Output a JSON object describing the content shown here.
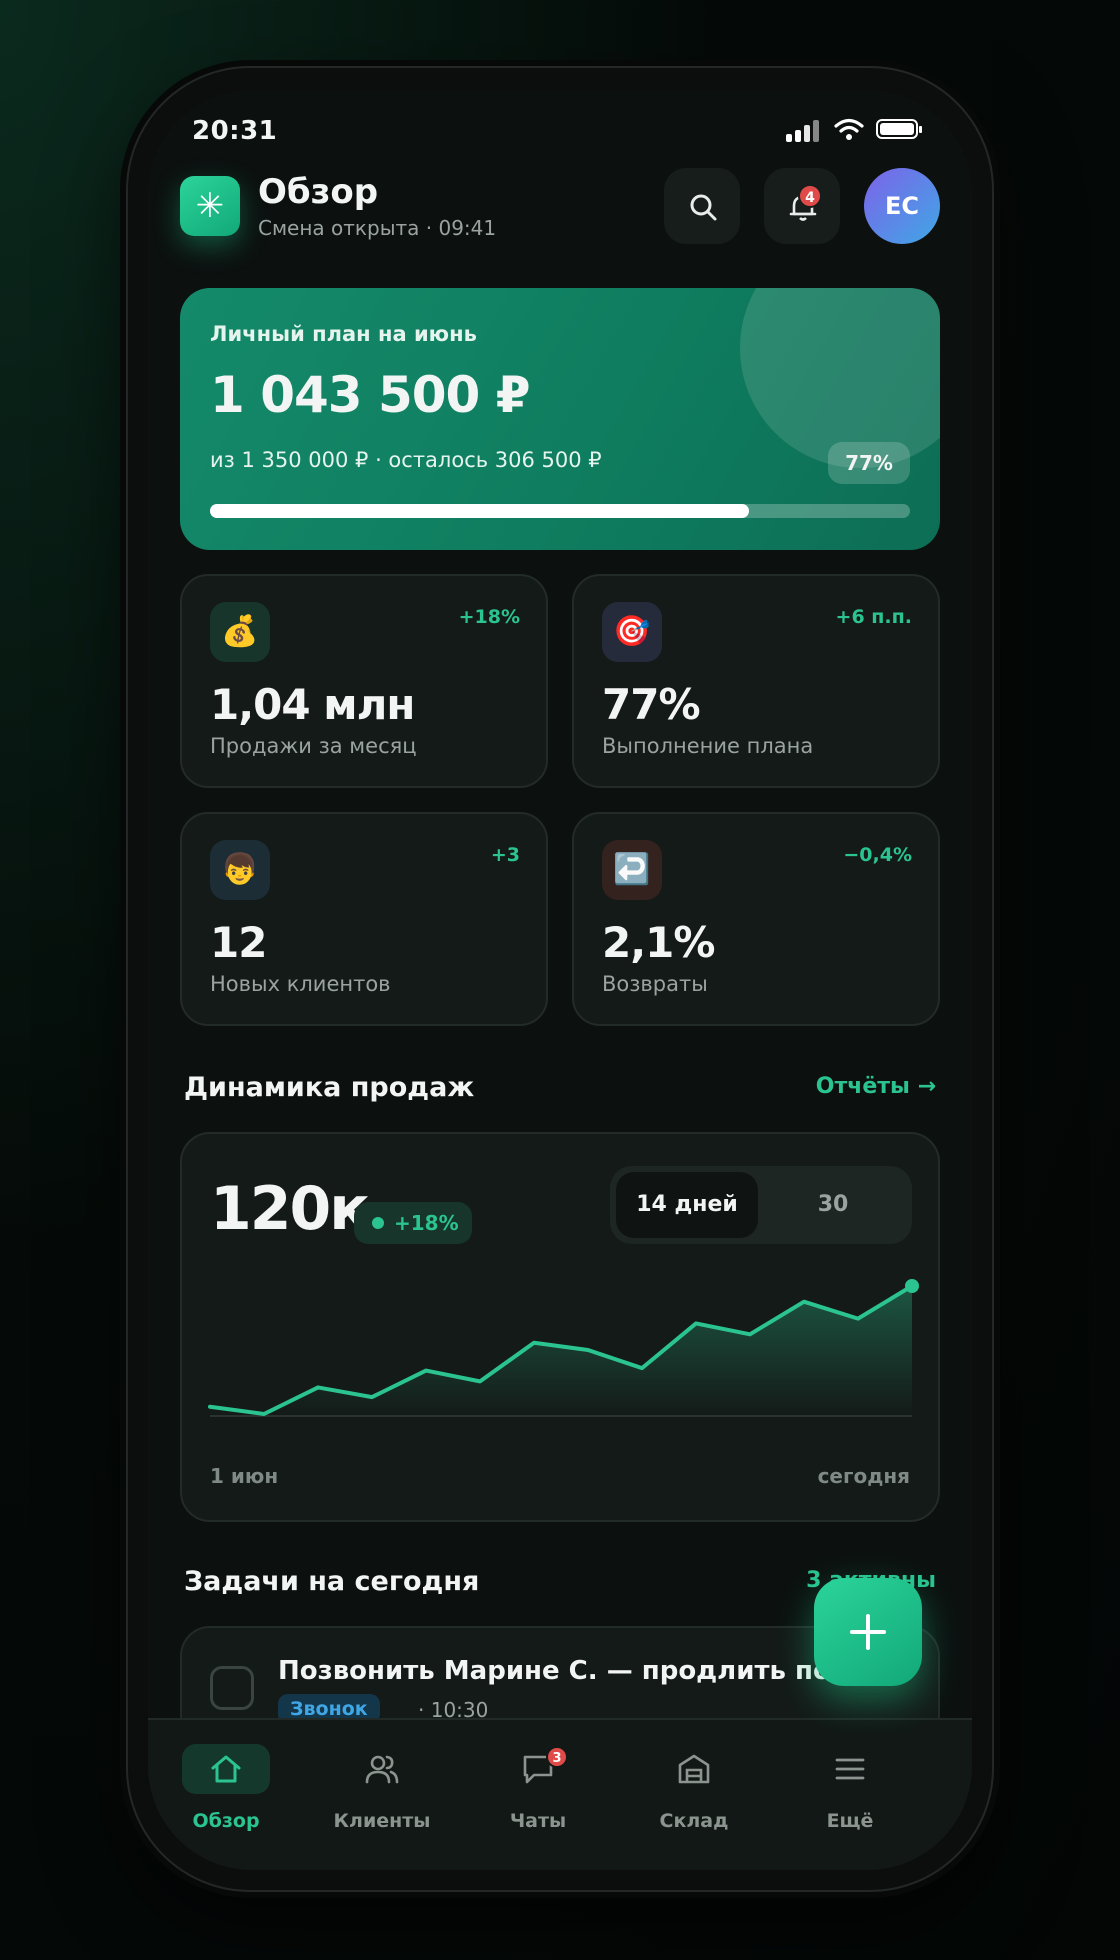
{
  "status_bar": {
    "time": "20:31"
  },
  "header": {
    "logo_icon": "sparkle-icon",
    "title": "Обзор",
    "subtitle": "Смена открыта · 09:41",
    "notifications_count": "4",
    "avatar_initials": "ЕС"
  },
  "plan": {
    "label": "Личный план на июнь",
    "amount": "1 043 500 ₽",
    "details": "из 1 350 000 ₽ · осталось 306 500 ₽",
    "percent_label": "77%",
    "progress": 0.77
  },
  "stats": [
    {
      "icon": "money-bag-icon",
      "emoji": "💰",
      "delta": "+18%",
      "value": "1,04 млн",
      "caption": "Продажи за месяц",
      "delta_color": "#2bc491"
    },
    {
      "icon": "target-icon",
      "emoji": "🎯",
      "delta": "+6 п.п.",
      "value": "77%",
      "caption": "Выполнение плана",
      "delta_color": "#2bc491"
    },
    {
      "icon": "person-icon",
      "emoji": "👦",
      "delta": "+3",
      "value": "12",
      "caption": "Новых клиентов",
      "delta_color": "#2bc491"
    },
    {
      "icon": "return-arrow-icon",
      "emoji": "↩️",
      "delta": "−0,4%",
      "value": "2,1%",
      "caption": "Возвраты",
      "delta_color": "#2bc491"
    }
  ],
  "sales_section": {
    "title": "Динамика продаж",
    "link": "Отчёты →"
  },
  "chart_card": {
    "value": "120к",
    "change": "+18%",
    "range_options": [
      "14 дней",
      "30"
    ],
    "selected_range": "14 дней",
    "x_start_label": "1 июн",
    "x_end_label": "сегодня"
  },
  "chart_data": {
    "type": "area",
    "x": [
      1,
      2,
      3,
      4,
      5,
      6,
      7,
      8,
      9,
      10,
      11,
      12,
      13,
      14
    ],
    "values": [
      6,
      0,
      22,
      14,
      36,
      27,
      59,
      53,
      38,
      75,
      66,
      93,
      79,
      106
    ],
    "categories_labels": [
      "1 июн",
      "сегодня"
    ],
    "color": "#2bc491",
    "grid": false
  },
  "tasks_section": {
    "title": "Задачи на сегодня",
    "count": "3 активны"
  },
  "tasks": [
    {
      "title": "Позвонить Марине С. — продлить подпи",
      "tag": "Звонок",
      "time": "· 10:30"
    }
  ],
  "fab": {
    "icon": "plus-icon"
  },
  "nav": [
    {
      "label": "Обзор",
      "icon": "home-icon",
      "active": true
    },
    {
      "label": "Клиенты",
      "icon": "users-icon",
      "active": false
    },
    {
      "label": "Чаты",
      "icon": "chat-icon",
      "active": false,
      "badge": "3"
    },
    {
      "label": "Склад",
      "icon": "warehouse-icon",
      "active": false
    },
    {
      "label": "Ещё",
      "icon": "menu-icon",
      "active": false
    }
  ],
  "colors": {
    "accent": "#2bc491",
    "danger": "#e04b49",
    "info": "#3fa7e6",
    "background": "#0c1110"
  }
}
